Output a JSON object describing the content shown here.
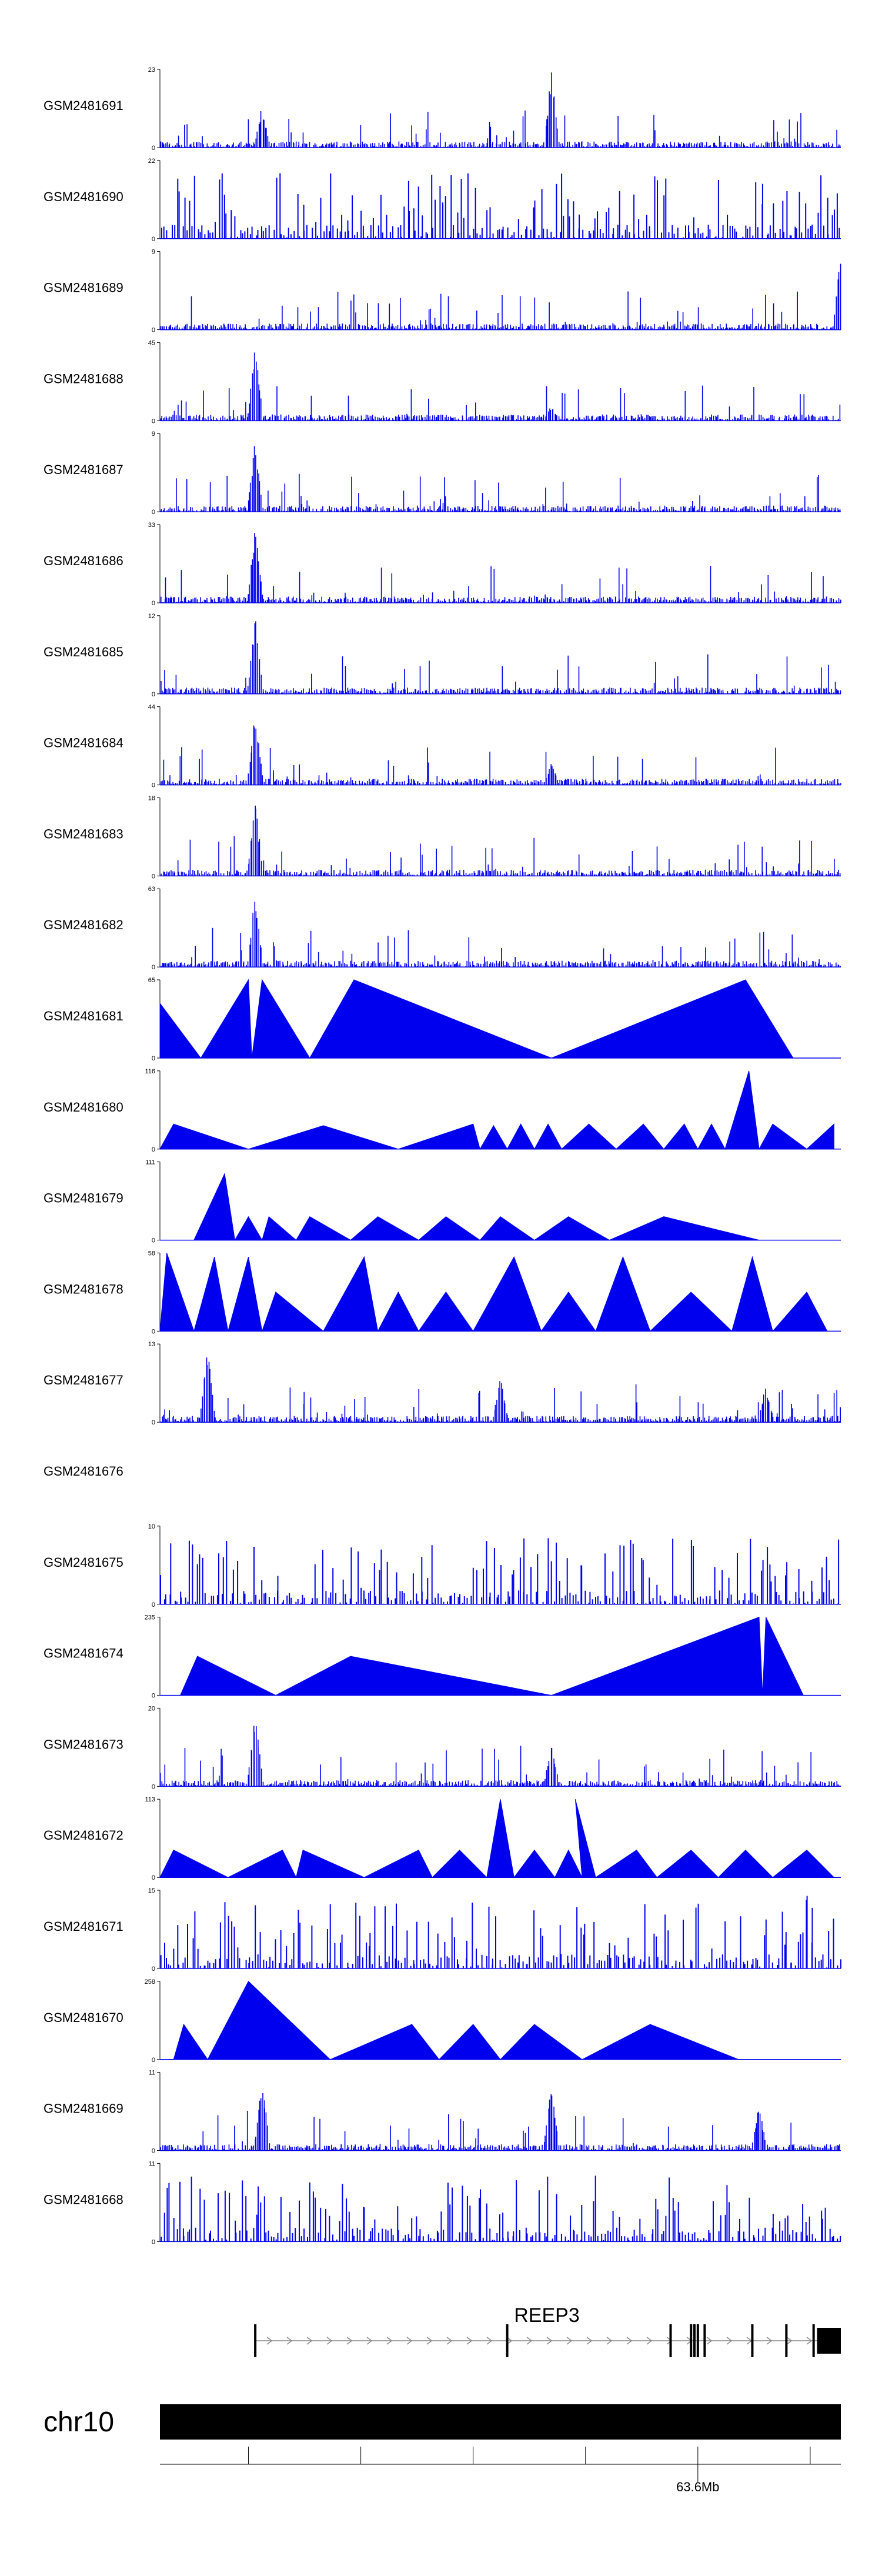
{
  "chart_data": {
    "type": "area",
    "colors": {
      "signal": "#0000ee",
      "axis": "#000000",
      "gene": "#000000",
      "intron_line": "#888888"
    },
    "tracks": [
      {
        "name": "GSM2481691",
        "ymax": 23,
        "ymin": 0,
        "pattern": "dense",
        "peaks": [
          [
            0.15,
            0.55
          ],
          [
            0.575,
            1.0
          ]
        ]
      },
      {
        "name": "GSM2481690",
        "ymax": 22,
        "ymin": 0,
        "pattern": "spikes",
        "peaks": [
          [
            0.09,
            1.0
          ]
        ]
      },
      {
        "name": "GSM2481689",
        "ymax": 9,
        "ymin": 0,
        "pattern": "dense",
        "peaks": [
          [
            1.0,
            1.0
          ]
        ]
      },
      {
        "name": "GSM2481688",
        "ymax": 45,
        "ymin": 0,
        "pattern": "dense",
        "peaks": [
          [
            0.14,
            1.0
          ],
          [
            0.575,
            0.2
          ]
        ]
      },
      {
        "name": "GSM2481687",
        "ymax": 9,
        "ymin": 0,
        "pattern": "dense",
        "peaks": [
          [
            0.14,
            0.95
          ]
        ]
      },
      {
        "name": "GSM2481686",
        "ymax": 33,
        "ymin": 0,
        "pattern": "dense",
        "peaks": [
          [
            0.14,
            1.0
          ]
        ]
      },
      {
        "name": "GSM2481685",
        "ymax": 12,
        "ymin": 0,
        "pattern": "dense",
        "peaks": [
          [
            0.14,
            1.0
          ]
        ]
      },
      {
        "name": "GSM2481684",
        "ymax": 44,
        "ymin": 0,
        "pattern": "dense",
        "peaks": [
          [
            0.14,
            1.0
          ],
          [
            0.575,
            0.3
          ]
        ]
      },
      {
        "name": "GSM2481683",
        "ymax": 18,
        "ymin": 0,
        "pattern": "dense",
        "peaks": [
          [
            0.14,
            1.0
          ]
        ]
      },
      {
        "name": "GSM2481682",
        "ymax": 63,
        "ymin": 0,
        "pattern": "dense",
        "peaks": [
          [
            0.14,
            1.0
          ]
        ]
      },
      {
        "name": "GSM2481681",
        "ymax": 65,
        "ymin": 0,
        "pattern": "triangles",
        "points": [
          [
            0.0,
            0.7
          ],
          [
            0.06,
            0.0
          ],
          [
            0.13,
            1.0
          ],
          [
            0.135,
            0.0
          ],
          [
            0.15,
            1.0
          ],
          [
            0.22,
            0.0
          ],
          [
            0.285,
            1.0
          ],
          [
            0.575,
            0.0
          ],
          [
            0.86,
            1.0
          ],
          [
            0.93,
            0.0
          ]
        ]
      },
      {
        "name": "GSM2481680",
        "ymax": 116,
        "ymin": 0,
        "pattern": "triangles",
        "points": [
          [
            0.0,
            0.0
          ],
          [
            0.02,
            0.32
          ],
          [
            0.13,
            0.0
          ],
          [
            0.24,
            0.3
          ],
          [
            0.35,
            0.0
          ],
          [
            0.46,
            0.32
          ],
          [
            0.47,
            0.0
          ],
          [
            0.49,
            0.3
          ],
          [
            0.51,
            0.0
          ],
          [
            0.53,
            0.32
          ],
          [
            0.55,
            0.0
          ],
          [
            0.57,
            0.32
          ],
          [
            0.59,
            0.0
          ],
          [
            0.63,
            0.32
          ],
          [
            0.67,
            0.0
          ],
          [
            0.71,
            0.32
          ],
          [
            0.74,
            0.0
          ],
          [
            0.77,
            0.32
          ],
          [
            0.79,
            0.0
          ],
          [
            0.81,
            0.32
          ],
          [
            0.83,
            0.0
          ],
          [
            0.865,
            1.0
          ],
          [
            0.88,
            0.0
          ],
          [
            0.9,
            0.32
          ],
          [
            0.95,
            0.0
          ],
          [
            0.99,
            0.32
          ]
        ]
      },
      {
        "name": "GSM2481679",
        "ymax": 111,
        "ymin": 0,
        "pattern": "triangles",
        "points": [
          [
            0.05,
            0.0
          ],
          [
            0.095,
            0.85
          ],
          [
            0.11,
            0.0
          ],
          [
            0.13,
            0.3
          ],
          [
            0.15,
            0.0
          ],
          [
            0.16,
            0.3
          ],
          [
            0.2,
            0.0
          ],
          [
            0.22,
            0.3
          ],
          [
            0.28,
            0.0
          ],
          [
            0.32,
            0.3
          ],
          [
            0.38,
            0.0
          ],
          [
            0.42,
            0.3
          ],
          [
            0.47,
            0.0
          ],
          [
            0.5,
            0.3
          ],
          [
            0.55,
            0.0
          ],
          [
            0.6,
            0.3
          ],
          [
            0.66,
            0.0
          ],
          [
            0.74,
            0.3
          ],
          [
            0.88,
            0.0
          ]
        ]
      },
      {
        "name": "GSM2481678",
        "ymax": 58,
        "ymin": 0,
        "pattern": "triangles",
        "points": [
          [
            0.0,
            0.0
          ],
          [
            0.01,
            1.0
          ],
          [
            0.05,
            0.0
          ],
          [
            0.08,
            0.95
          ],
          [
            0.1,
            0.0
          ],
          [
            0.13,
            0.95
          ],
          [
            0.15,
            0.0
          ],
          [
            0.17,
            0.5
          ],
          [
            0.24,
            0.0
          ],
          [
            0.3,
            0.95
          ],
          [
            0.32,
            0.0
          ],
          [
            0.35,
            0.5
          ],
          [
            0.38,
            0.0
          ],
          [
            0.42,
            0.5
          ],
          [
            0.46,
            0.0
          ],
          [
            0.52,
            0.95
          ],
          [
            0.56,
            0.0
          ],
          [
            0.6,
            0.5
          ],
          [
            0.64,
            0.0
          ],
          [
            0.68,
            0.95
          ],
          [
            0.72,
            0.0
          ],
          [
            0.78,
            0.5
          ],
          [
            0.84,
            0.0
          ],
          [
            0.87,
            0.95
          ],
          [
            0.9,
            0.0
          ],
          [
            0.95,
            0.5
          ],
          [
            0.98,
            0.0
          ]
        ]
      },
      {
        "name": "GSM2481677",
        "ymax": 13,
        "ymin": 0,
        "pattern": "dense",
        "peaks": [
          [
            0.07,
            1.0
          ],
          [
            0.5,
            0.6
          ],
          [
            0.89,
            0.5
          ]
        ]
      },
      {
        "name": "GSM2481676",
        "ymax": null,
        "ymin": null,
        "pattern": "empty"
      },
      {
        "name": "GSM2481675",
        "ymax": 10,
        "ymin": 0,
        "pattern": "spikes",
        "peaks": [
          [
            0.89,
            1.0
          ]
        ]
      },
      {
        "name": "GSM2481674",
        "ymax": 235,
        "ymin": 0,
        "pattern": "triangles",
        "points": [
          [
            0.03,
            0.0
          ],
          [
            0.055,
            0.5
          ],
          [
            0.17,
            0.0
          ],
          [
            0.28,
            0.5
          ],
          [
            0.575,
            0.0
          ],
          [
            0.88,
            1.0
          ],
          [
            0.885,
            0.0
          ],
          [
            0.89,
            1.0
          ],
          [
            0.945,
            0.0
          ]
        ]
      },
      {
        "name": "GSM2481673",
        "ymax": 20,
        "ymin": 0,
        "pattern": "dense",
        "peaks": [
          [
            0.14,
            1.0
          ],
          [
            0.575,
            0.55
          ]
        ]
      },
      {
        "name": "GSM2481672",
        "ymax": 113,
        "ymin": 0,
        "pattern": "triangles",
        "points": [
          [
            0.0,
            0.0
          ],
          [
            0.02,
            0.35
          ],
          [
            0.1,
            0.0
          ],
          [
            0.18,
            0.35
          ],
          [
            0.2,
            0.0
          ],
          [
            0.21,
            0.35
          ],
          [
            0.3,
            0.0
          ],
          [
            0.38,
            0.35
          ],
          [
            0.4,
            0.0
          ],
          [
            0.44,
            0.35
          ],
          [
            0.48,
            0.0
          ],
          [
            0.5,
            1.0
          ],
          [
            0.52,
            0.0
          ],
          [
            0.55,
            0.35
          ],
          [
            0.58,
            0.0
          ],
          [
            0.6,
            0.35
          ],
          [
            0.62,
            0.0
          ],
          [
            0.61,
            1.0
          ],
          [
            0.64,
            0.0
          ],
          [
            0.7,
            0.35
          ],
          [
            0.73,
            0.0
          ],
          [
            0.78,
            0.35
          ],
          [
            0.82,
            0.0
          ],
          [
            0.86,
            0.35
          ],
          [
            0.9,
            0.0
          ],
          [
            0.95,
            0.35
          ],
          [
            0.99,
            0.0
          ]
        ]
      },
      {
        "name": "GSM2481671",
        "ymax": 15,
        "ymin": 0,
        "pattern": "spikes",
        "peaks": [
          [
            0.95,
            1.0
          ]
        ]
      },
      {
        "name": "GSM2481670",
        "ymax": 258,
        "ymin": 0,
        "pattern": "triangles",
        "points": [
          [
            0.02,
            0.0
          ],
          [
            0.035,
            0.45
          ],
          [
            0.07,
            0.0
          ],
          [
            0.13,
            1.0
          ],
          [
            0.25,
            0.0
          ],
          [
            0.37,
            0.45
          ],
          [
            0.41,
            0.0
          ],
          [
            0.46,
            0.45
          ],
          [
            0.5,
            0.0
          ],
          [
            0.55,
            0.45
          ],
          [
            0.62,
            0.0
          ],
          [
            0.72,
            0.45
          ],
          [
            0.85,
            0.0
          ]
        ]
      },
      {
        "name": "GSM2481669",
        "ymax": 11,
        "ymin": 0,
        "pattern": "dense",
        "peaks": [
          [
            0.15,
            1.0
          ],
          [
            0.575,
            0.9
          ],
          [
            0.88,
            0.6
          ]
        ]
      },
      {
        "name": "GSM2481668",
        "ymax": 11,
        "ymin": 0,
        "pattern": "spikes",
        "peaks": [
          [
            0.75,
            1.0
          ]
        ]
      }
    ],
    "gene": {
      "name": "REEP3",
      "strand": "+",
      "start_frac": 0.14,
      "end_frac": 1.0,
      "exons": [
        0.14,
        0.51,
        0.75,
        0.785,
        0.78,
        0.79,
        0.8,
        0.87,
        0.92,
        0.96
      ],
      "utr_block": [
        0.965,
        1.0
      ]
    },
    "ideogram": {
      "chromosome": "chr10",
      "ticks": [
        0.13,
        0.295,
        0.46,
        0.625,
        0.79,
        0.955
      ],
      "tick_labels": [
        {
          "pos": 0.79,
          "text": "63.6Mb"
        }
      ]
    },
    "title": "",
    "xlabel": "",
    "ylabel": ""
  }
}
